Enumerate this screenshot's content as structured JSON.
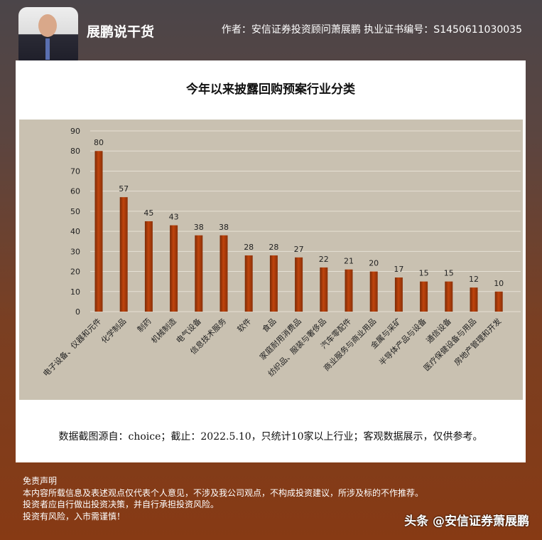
{
  "header": {
    "brand": "展鹏说干货",
    "author": "作者：安信证券投资顾问萧展鹏 执业证书编号：S1450611030035"
  },
  "chart_data": {
    "type": "bar",
    "title": "今年以来披露回购预案行业分类",
    "categories": [
      "电子设备、仪器和元件",
      "化学制品",
      "制药",
      "机械制造",
      "电气设备",
      "信息技术服务",
      "软件",
      "食品",
      "家庭耐用消费品",
      "纺织品、服装与奢侈品",
      "汽车零配件",
      "商业服务与商业用品",
      "金属与采矿",
      "半导体产品与设备",
      "通信设备",
      "医疗保健设备与用品",
      "房地产管理和开发"
    ],
    "values": [
      80,
      57,
      45,
      43,
      38,
      38,
      28,
      28,
      27,
      22,
      21,
      20,
      17,
      15,
      15,
      12,
      10
    ],
    "yticks": [
      0,
      10,
      20,
      30,
      40,
      50,
      60,
      70,
      80,
      90
    ],
    "ylim": [
      0,
      90
    ],
    "grid": true,
    "bar_color": "#c0440c",
    "background": "#c9c1b1"
  },
  "source": "数据截图源自：choice；截止：2022.5.10，只统计10家以上行业；客观数据展示，仅供参考。",
  "disclaimer": {
    "title": "免责声明",
    "lines": [
      "本内容所载信息及表述观点仅代表个人意见，不涉及我公司观点，不构成投资建议，所涉及标的不作推荐。",
      "投资者应自行做出投资决策，并自行承担投资风险。",
      "投资有风险，入市需谨慎！"
    ]
  },
  "watermark": "头条 @安信证券萧展鹏"
}
